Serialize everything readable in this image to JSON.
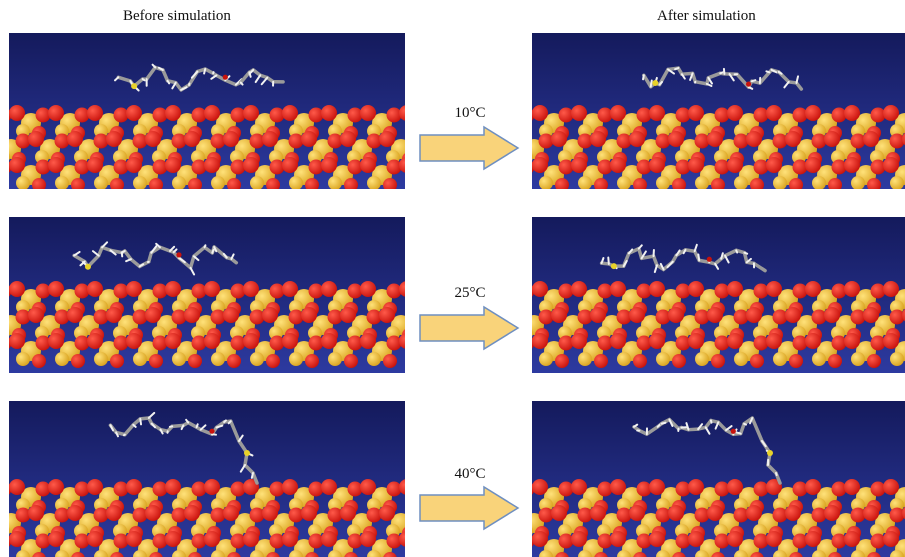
{
  "headings": {
    "before": "Before simulation",
    "after": "After simulation"
  },
  "rows": [
    {
      "temperature": "10°C",
      "before_shape": "flat",
      "after_shape": "flat"
    },
    {
      "temperature": "25°C",
      "before_shape": "flat",
      "after_shape": "flat"
    },
    {
      "temperature": "40°C",
      "before_shape": "tail-down",
      "after_shape": "tail-down"
    }
  ],
  "colors": {
    "background_top": "#141a5c",
    "background_bottom": "#2d3aa0",
    "atom_gold": "#d9a21e",
    "atom_red": "#c8120c",
    "molecule_gray": "#9a9a9a",
    "molecule_white": "#f2f2f2",
    "molecule_yellow": "#e8d22a",
    "arrow_fill": "#f9d37a",
    "arrow_stroke": "#6f8fc0"
  }
}
